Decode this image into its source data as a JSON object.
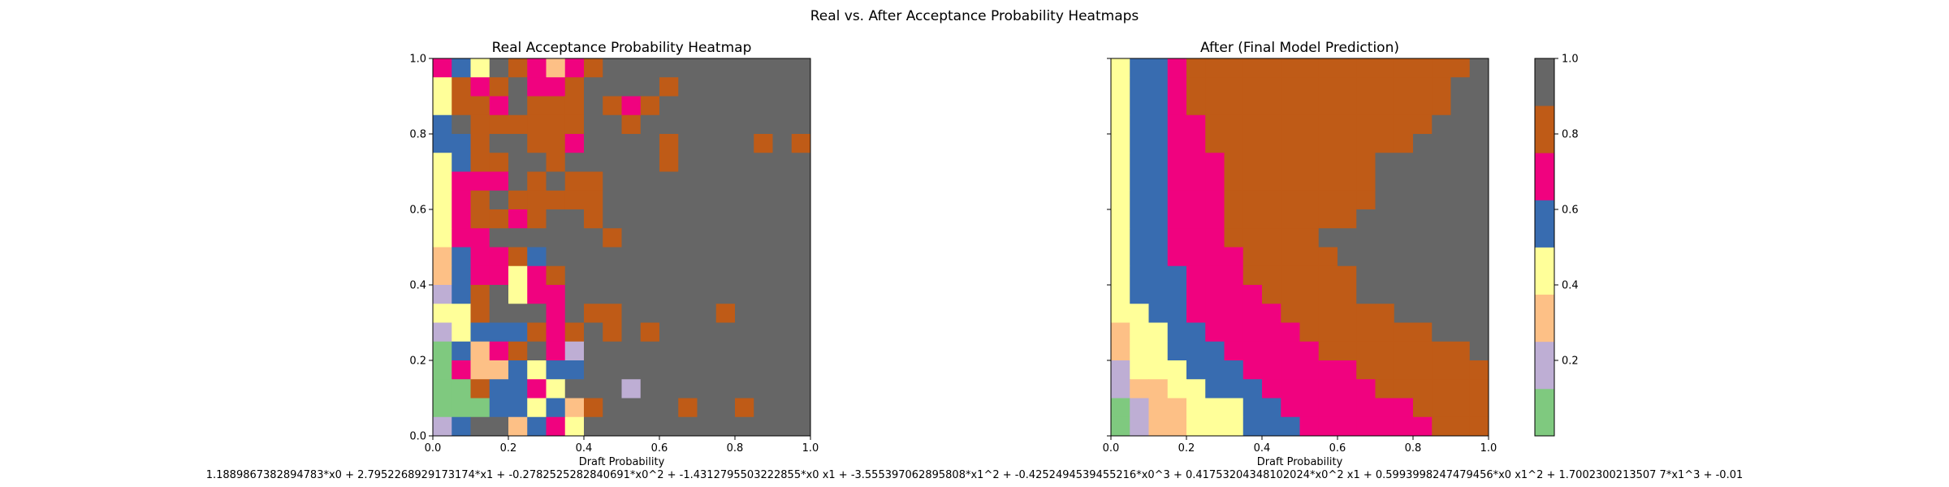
{
  "suptitle": "Real vs. After Acceptance Probability Heatmaps",
  "footer_equation": "1.1889867382894783*x0 + 2.7952268929173174*x1 + -0.2782525282840691*x0^2 + -1.4312795503222855*x0 x1 + -3.555397062895808*x1^2 + -0.4252494539455216*x0^3 + 0.41753204348102024*x0^2 x1 + 0.5993998247479456*x0 x1^2 + 1.7002300213507 7*x1^3 + -0.01",
  "palette": [
    "#7fc97f",
    "#beaed4",
    "#fdc086",
    "#ffff99",
    "#386cb0",
    "#f0027f",
    "#bf5b17",
    "#666666"
  ],
  "colorbar": {
    "ticks": [
      0.2,
      0.4,
      0.6,
      0.8,
      1.0
    ],
    "tick_labels": [
      "0.2",
      "0.4",
      "0.6",
      "0.8",
      "1.0"
    ]
  },
  "chart_data": [
    {
      "type": "heatmap",
      "title": "Real Acceptance Probability Heatmap",
      "xlabel": "Draft Probability",
      "ylabel": "",
      "xlim": [
        0,
        1
      ],
      "ylim": [
        0,
        1
      ],
      "xticks": [
        "0.0",
        "0.2",
        "0.4",
        "0.6",
        "0.8",
        "1.0"
      ],
      "yticks": [
        "0.0",
        "0.2",
        "0.4",
        "0.6",
        "0.8",
        "1.0"
      ],
      "grid_rows_top_to_bottom": [
        "54376525677777777777",
        "36567556777767777777",
        "36657666765677777777",
        "47666666776777777777",
        "44677665777767777676",
        "34667767777767777777",
        "35557676677777777777",
        "35676666677777777777",
        "35665677677777777777",
        "35577777767777777777",
        "24556477777777777777",
        "24553567777777777777",
        "14673557777777777777",
        "33677757667777767777",
        "13444656767677777777",
        "04256751777777777777",
        "05224344777777777777",
        "00644537771777777777",
        "00044342677776776777",
        "14772453777777777777"
      ],
      "empty_cells_note": ""
    },
    {
      "type": "heatmap",
      "title": "After (Final Model Prediction)",
      "xlabel": "Draft Probability",
      "ylabel": "",
      "xlim": [
        0,
        1
      ],
      "ylim": [
        0,
        1
      ],
      "xticks": [
        "0.0",
        "0.2",
        "0.4",
        "0.6",
        "0.8",
        "1.0"
      ],
      "yticks": [
        "0.0",
        "0.2",
        "0.4",
        "0.6",
        "0.8",
        "1.0"
      ],
      "grid_rows_top_to_bottom": [
        "34456666666666666667",
        "34456666666666666677",
        "34456666666666666677",
        "34455666666666666777",
        "34455666666666667777",
        "34455566666666777777",
        "34455566666666777777",
        "34455566666666777777",
        "34455566666667777777",
        "34455566666777777777",
        "34455556666677777777",
        "34445556666667777777",
        "34445555666667777777",
        "33445555566666677777",
        "23344555556666666777",
        "23344455555666666667",
        "13334445555556666666",
        "12233444555555666666",
        "01223334455555556666",
        "01223334445555555666"
      ],
      "colorbar": true
    }
  ]
}
